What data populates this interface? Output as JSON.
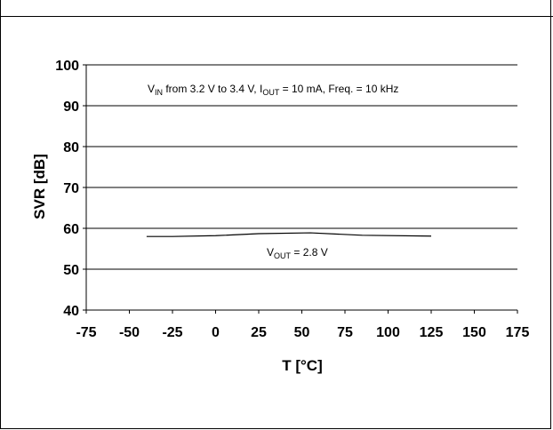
{
  "chart_data": {
    "type": "line",
    "xlabel": "T [°C]",
    "ylabel": "SVR [dB]",
    "xlim": [
      -75,
      175
    ],
    "ylim": [
      40,
      100
    ],
    "x_ticks": [
      -75,
      -50,
      -25,
      0,
      25,
      50,
      75,
      100,
      125,
      150,
      175
    ],
    "y_ticks": [
      40,
      50,
      60,
      70,
      80,
      90,
      100
    ],
    "grid": "horizontal",
    "annotation_top": {
      "v": "V",
      "v_sub": "IN",
      "part1": " from 3.2 V to 3.4 V, I",
      "i_sub": "OUT",
      "part2": " = 10 mA, Freq. = 10 kHz"
    },
    "annotation_series": {
      "v": "V",
      "v_sub": "OUT",
      "rest": " = 2.8 V"
    },
    "series": [
      {
        "x": [
          -40,
          -25,
          0,
          25,
          55,
          85,
          125
        ],
        "y": [
          58,
          58,
          58.2,
          58.7,
          58.9,
          58.3,
          58.1
        ],
        "color": "#000000"
      }
    ]
  }
}
